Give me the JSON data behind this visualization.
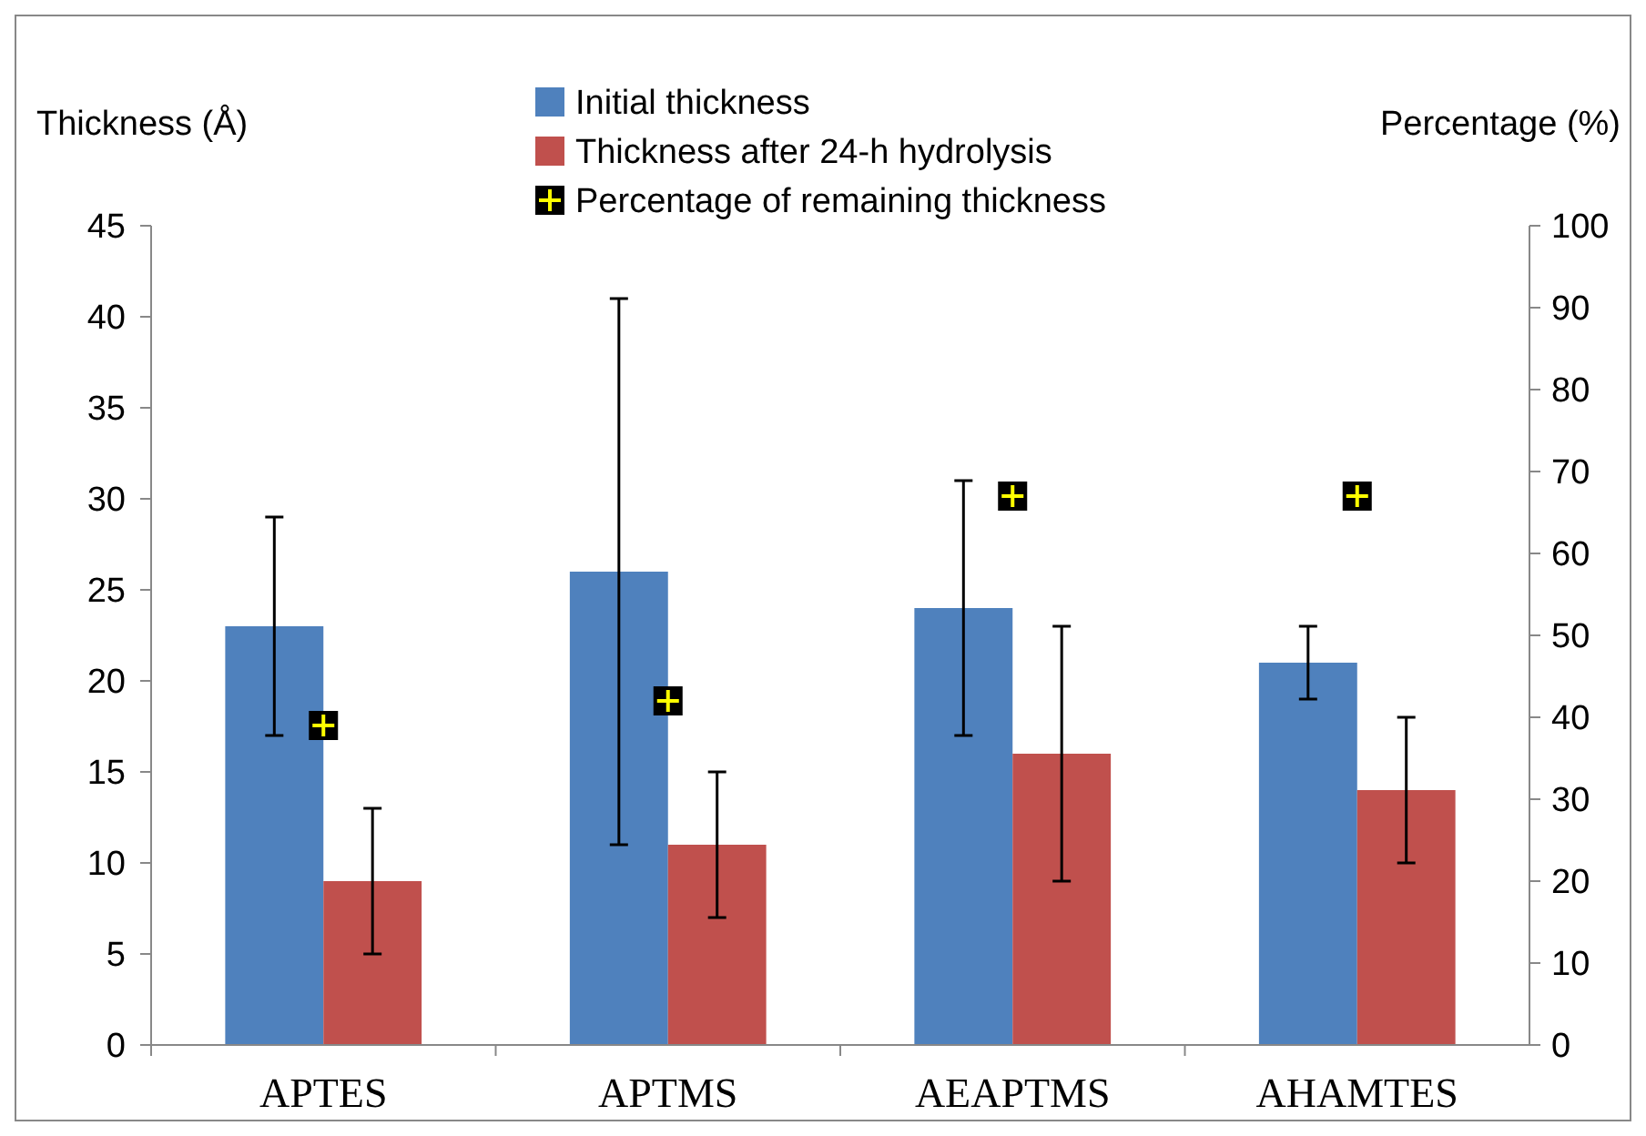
{
  "chart_data": {
    "type": "bar",
    "ylabel": "Thickness (Å)",
    "y2label": "Percentage (%)",
    "categories": [
      "APTES",
      "APTMS",
      "AEAPTMS",
      "AHAMTES"
    ],
    "series": [
      {
        "name": "Initial thickness",
        "color": "#4f81bd",
        "values": [
          23,
          26,
          24,
          21
        ],
        "errors": [
          6,
          15,
          7,
          2
        ]
      },
      {
        "name": "Thickness after 24-h hydrolysis",
        "color": "#c0504d",
        "values": [
          9,
          11,
          16,
          14
        ],
        "errors": [
          4,
          4,
          7,
          4
        ]
      },
      {
        "name": "Percentage of remaining thickness",
        "type": "scatter",
        "axis": "y2",
        "marker": "square",
        "color": "#000000",
        "x": [
          "APTES",
          "APTMS",
          "AEAPTMS",
          "AHAMTES"
        ],
        "values": [
          39,
          42,
          67,
          67
        ]
      }
    ],
    "ylim": [
      0,
      45
    ],
    "yticks": [
      0,
      5,
      10,
      15,
      20,
      25,
      30,
      35,
      40,
      45
    ],
    "y2lim": [
      0,
      100
    ],
    "y2ticks": [
      0,
      10,
      20,
      30,
      40,
      50,
      60,
      70,
      80,
      90,
      100
    ],
    "grid": false,
    "legend": "top"
  }
}
